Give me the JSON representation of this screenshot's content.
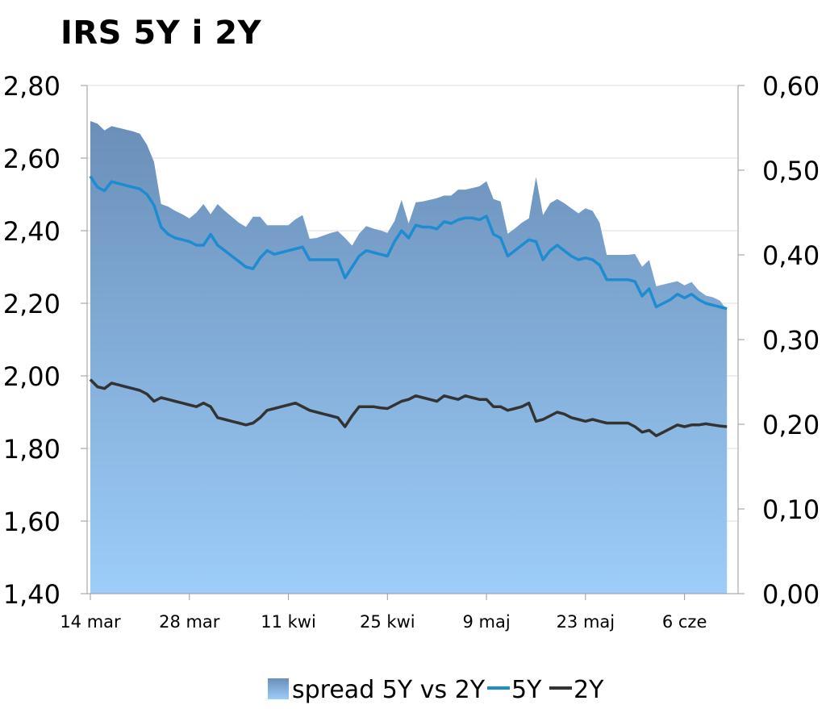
{
  "chart_data": {
    "type": "area",
    "title": "IRS 5Y i 2Y",
    "xlabel": "",
    "ylabel": "",
    "x_range_days": [
      0,
      91
    ],
    "x_ticks": [
      {
        "day": 0,
        "label": "14 mar"
      },
      {
        "day": 14,
        "label": "28 mar"
      },
      {
        "day": 28,
        "label": "11 kwi"
      },
      {
        "day": 42,
        "label": "25 kwi"
      },
      {
        "day": 56,
        "label": "9 maj"
      },
      {
        "day": 70,
        "label": "23 maj"
      },
      {
        "day": 84,
        "label": "6 cze"
      }
    ],
    "y_left": {
      "min": 1.4,
      "max": 2.8,
      "ticks": [
        "1,40",
        "1,60",
        "1,80",
        "2,00",
        "2,20",
        "2,40",
        "2,60",
        "2,80"
      ]
    },
    "y_right": {
      "min": 0.0,
      "max": 0.6,
      "ticks": [
        "0,00",
        "0,10",
        "0,20",
        "0,30",
        "0,40",
        "0,50",
        "0,60"
      ]
    },
    "grid": true,
    "legend_position": "bottom",
    "series": [
      {
        "name": "spread 5Y vs 2Y",
        "kind": "area",
        "axis": "right",
        "color_top": "#6a8fb8",
        "color_bottom": "#9dcdfa",
        "points": [
          [
            0,
            0.558
          ],
          [
            1,
            0.555
          ],
          [
            2,
            0.547
          ],
          [
            3,
            0.552
          ],
          [
            4,
            0.55
          ],
          [
            5,
            0.548
          ],
          [
            6,
            0.546
          ],
          [
            7,
            0.543
          ],
          [
            8,
            0.53
          ],
          [
            9,
            0.51
          ],
          [
            10,
            0.46
          ],
          [
            11,
            0.457
          ],
          [
            12,
            0.452
          ],
          [
            13,
            0.448
          ],
          [
            14,
            0.443
          ],
          [
            15,
            0.45
          ],
          [
            16,
            0.46
          ],
          [
            17,
            0.448
          ],
          [
            18,
            0.46
          ],
          [
            19,
            0.452
          ],
          [
            20,
            0.445
          ],
          [
            21,
            0.438
          ],
          [
            22,
            0.433
          ],
          [
            23,
            0.445
          ],
          [
            24,
            0.445
          ],
          [
            25,
            0.435
          ],
          [
            26,
            0.435
          ],
          [
            27,
            0.435
          ],
          [
            28,
            0.435
          ],
          [
            29,
            0.442
          ],
          [
            30,
            0.447
          ],
          [
            31,
            0.419
          ],
          [
            32,
            0.42
          ],
          [
            33,
            0.423
          ],
          [
            34,
            0.426
          ],
          [
            35,
            0.428
          ],
          [
            36,
            0.42
          ],
          [
            37,
            0.411
          ],
          [
            38,
            0.425
          ],
          [
            39,
            0.434
          ],
          [
            40,
            0.431
          ],
          [
            41,
            0.429
          ],
          [
            42,
            0.426
          ],
          [
            43,
            0.44
          ],
          [
            44,
            0.465
          ],
          [
            45,
            0.437
          ],
          [
            46,
            0.462
          ],
          [
            47,
            0.463
          ],
          [
            48,
            0.465
          ],
          [
            49,
            0.467
          ],
          [
            50,
            0.47
          ],
          [
            51,
            0.47
          ],
          [
            52,
            0.477
          ],
          [
            53,
            0.477
          ],
          [
            54,
            0.479
          ],
          [
            55,
            0.481
          ],
          [
            56,
            0.487
          ],
          [
            57,
            0.466
          ],
          [
            58,
            0.463
          ],
          [
            59,
            0.425
          ],
          [
            60,
            0.431
          ],
          [
            61,
            0.438
          ],
          [
            62,
            0.443
          ],
          [
            63,
            0.492
          ],
          [
            64,
            0.447
          ],
          [
            65,
            0.461
          ],
          [
            66,
            0.466
          ],
          [
            67,
            0.461
          ],
          [
            68,
            0.455
          ],
          [
            69,
            0.449
          ],
          [
            70,
            0.455
          ],
          [
            71,
            0.452
          ],
          [
            72,
            0.438
          ],
          [
            73,
            0.4
          ],
          [
            74,
            0.4
          ],
          [
            75,
            0.4
          ],
          [
            76,
            0.4
          ],
          [
            77,
            0.401
          ],
          [
            78,
            0.386
          ],
          [
            79,
            0.394
          ],
          [
            80,
            0.363
          ],
          [
            81,
            0.365
          ],
          [
            82,
            0.367
          ],
          [
            83,
            0.369
          ],
          [
            84,
            0.364
          ],
          [
            85,
            0.368
          ],
          [
            86,
            0.358
          ],
          [
            87,
            0.352
          ],
          [
            88,
            0.35
          ],
          [
            89,
            0.346
          ],
          [
            90,
            0.335
          ]
        ]
      },
      {
        "name": "5Y",
        "kind": "line",
        "axis": "left",
        "color": "#1f8bd0",
        "points": [
          [
            0,
            2.55
          ],
          [
            1,
            2.52
          ],
          [
            2,
            2.51
          ],
          [
            3,
            2.535
          ],
          [
            4,
            2.53
          ],
          [
            5,
            2.525
          ],
          [
            6,
            2.52
          ],
          [
            7,
            2.515
          ],
          [
            8,
            2.5
          ],
          [
            9,
            2.47
          ],
          [
            10,
            2.41
          ],
          [
            11,
            2.39
          ],
          [
            12,
            2.38
          ],
          [
            13,
            2.375
          ],
          [
            14,
            2.37
          ],
          [
            15,
            2.36
          ],
          [
            16,
            2.36
          ],
          [
            17,
            2.39
          ],
          [
            18,
            2.36
          ],
          [
            19,
            2.345
          ],
          [
            20,
            2.33
          ],
          [
            21,
            2.315
          ],
          [
            22,
            2.3
          ],
          [
            23,
            2.295
          ],
          [
            24,
            2.325
          ],
          [
            25,
            2.345
          ],
          [
            26,
            2.335
          ],
          [
            27,
            2.34
          ],
          [
            28,
            2.345
          ],
          [
            29,
            2.35
          ],
          [
            30,
            2.355
          ],
          [
            31,
            2.32
          ],
          [
            32,
            2.32
          ],
          [
            33,
            2.32
          ],
          [
            34,
            2.32
          ],
          [
            35,
            2.32
          ],
          [
            36,
            2.27
          ],
          [
            37,
            2.3
          ],
          [
            38,
            2.33
          ],
          [
            39,
            2.345
          ],
          [
            40,
            2.34
          ],
          [
            41,
            2.335
          ],
          [
            42,
            2.33
          ],
          [
            43,
            2.37
          ],
          [
            44,
            2.4
          ],
          [
            45,
            2.38
          ],
          [
            46,
            2.415
          ],
          [
            47,
            2.41
          ],
          [
            48,
            2.41
          ],
          [
            49,
            2.405
          ],
          [
            50,
            2.425
          ],
          [
            51,
            2.42
          ],
          [
            52,
            2.43
          ],
          [
            53,
            2.435
          ],
          [
            54,
            2.435
          ],
          [
            55,
            2.43
          ],
          [
            56,
            2.44
          ],
          [
            57,
            2.39
          ],
          [
            58,
            2.38
          ],
          [
            59,
            2.33
          ],
          [
            60,
            2.345
          ],
          [
            61,
            2.36
          ],
          [
            62,
            2.375
          ],
          [
            63,
            2.37
          ],
          [
            64,
            2.32
          ],
          [
            65,
            2.345
          ],
          [
            66,
            2.36
          ],
          [
            67,
            2.345
          ],
          [
            68,
            2.33
          ],
          [
            69,
            2.32
          ],
          [
            70,
            2.325
          ],
          [
            71,
            2.32
          ],
          [
            72,
            2.305
          ],
          [
            73,
            2.265
          ],
          [
            74,
            2.265
          ],
          [
            75,
            2.265
          ],
          [
            76,
            2.265
          ],
          [
            77,
            2.26
          ],
          [
            78,
            2.22
          ],
          [
            79,
            2.24
          ],
          [
            80,
            2.19
          ],
          [
            81,
            2.2
          ],
          [
            82,
            2.21
          ],
          [
            83,
            2.225
          ],
          [
            84,
            2.215
          ],
          [
            85,
            2.225
          ],
          [
            86,
            2.21
          ],
          [
            87,
            2.2
          ],
          [
            88,
            2.195
          ],
          [
            89,
            2.19
          ],
          [
            90,
            2.185
          ]
        ]
      },
      {
        "name": "2Y",
        "kind": "line",
        "axis": "left",
        "color": "#333333",
        "points": [
          [
            0,
            1.99
          ],
          [
            1,
            1.97
          ],
          [
            2,
            1.965
          ],
          [
            3,
            1.98
          ],
          [
            4,
            1.975
          ],
          [
            5,
            1.97
          ],
          [
            6,
            1.965
          ],
          [
            7,
            1.96
          ],
          [
            8,
            1.95
          ],
          [
            9,
            1.93
          ],
          [
            10,
            1.94
          ],
          [
            11,
            1.935
          ],
          [
            12,
            1.93
          ],
          [
            13,
            1.925
          ],
          [
            14,
            1.92
          ],
          [
            15,
            1.915
          ],
          [
            16,
            1.925
          ],
          [
            17,
            1.915
          ],
          [
            18,
            1.885
          ],
          [
            19,
            1.88
          ],
          [
            20,
            1.875
          ],
          [
            21,
            1.87
          ],
          [
            22,
            1.865
          ],
          [
            23,
            1.87
          ],
          [
            24,
            1.885
          ],
          [
            25,
            1.905
          ],
          [
            26,
            1.91
          ],
          [
            27,
            1.915
          ],
          [
            28,
            1.92
          ],
          [
            29,
            1.925
          ],
          [
            30,
            1.915
          ],
          [
            31,
            1.905
          ],
          [
            32,
            1.9
          ],
          [
            33,
            1.895
          ],
          [
            34,
            1.89
          ],
          [
            35,
            1.885
          ],
          [
            36,
            1.86
          ],
          [
            37,
            1.89
          ],
          [
            38,
            1.915
          ],
          [
            39,
            1.915
          ],
          [
            40,
            1.915
          ],
          [
            41,
            1.912
          ],
          [
            42,
            1.91
          ],
          [
            43,
            1.92
          ],
          [
            44,
            1.93
          ],
          [
            45,
            1.935
          ],
          [
            46,
            1.945
          ],
          [
            47,
            1.94
          ],
          [
            48,
            1.935
          ],
          [
            49,
            1.93
          ],
          [
            50,
            1.945
          ],
          [
            51,
            1.94
          ],
          [
            52,
            1.935
          ],
          [
            53,
            1.945
          ],
          [
            54,
            1.94
          ],
          [
            55,
            1.935
          ],
          [
            56,
            1.935
          ],
          [
            57,
            1.915
          ],
          [
            58,
            1.915
          ],
          [
            59,
            1.905
          ],
          [
            60,
            1.91
          ],
          [
            61,
            1.915
          ],
          [
            62,
            1.925
          ],
          [
            63,
            1.875
          ],
          [
            64,
            1.88
          ],
          [
            65,
            1.89
          ],
          [
            66,
            1.9
          ],
          [
            67,
            1.895
          ],
          [
            68,
            1.885
          ],
          [
            69,
            1.88
          ],
          [
            70,
            1.875
          ],
          [
            71,
            1.88
          ],
          [
            72,
            1.875
          ],
          [
            73,
            1.87
          ],
          [
            74,
            1.87
          ],
          [
            75,
            1.87
          ],
          [
            76,
            1.87
          ],
          [
            77,
            1.86
          ],
          [
            78,
            1.845
          ],
          [
            79,
            1.85
          ],
          [
            80,
            1.835
          ],
          [
            81,
            1.845
          ],
          [
            82,
            1.855
          ],
          [
            83,
            1.865
          ],
          [
            84,
            1.86
          ],
          [
            85,
            1.865
          ],
          [
            86,
            1.865
          ],
          [
            87,
            1.868
          ],
          [
            88,
            1.865
          ],
          [
            89,
            1.862
          ],
          [
            90,
            1.86
          ]
        ]
      }
    ]
  }
}
